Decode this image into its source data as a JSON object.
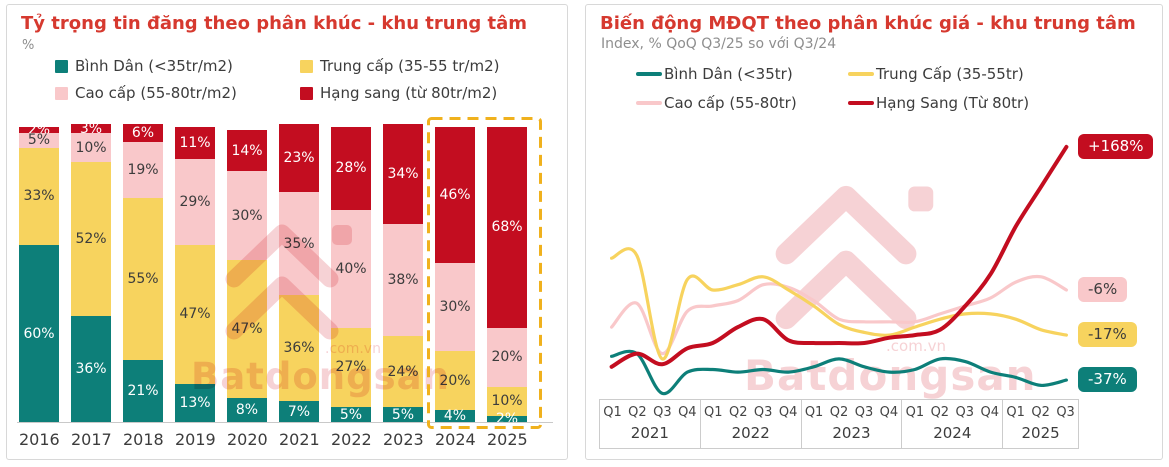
{
  "page": {
    "background": "#ffffff"
  },
  "colors": {
    "title_red": "#d6392f",
    "card_border": "#d8d8d8",
    "text_dark": "#3c3c3c",
    "text_muted": "#8e8e8e",
    "axis_gray": "#c9c9c9",
    "highlight_dash": "#f0b11d",
    "watermark_pink": "#f3bfc3",
    "teal": "#0d7f79",
    "yellow": "#f7d35e",
    "pink": "#f9c8ca",
    "red": "#c30d20"
  },
  "watermark": {
    "brand": "Batdongsan",
    "suffix": ".com.vn"
  },
  "chart_data": [
    {
      "type": "bar",
      "stacked": true,
      "title": "Tỷ trọng tin đăng theo phân khúc - khu trung tâm",
      "ylabel": "%",
      "xlabel": "",
      "ylim": [
        0,
        100
      ],
      "legend_position": "top",
      "value_suffix": "%",
      "categories": [
        "2016",
        "2017",
        "2018",
        "2019",
        "2020",
        "2021",
        "2022",
        "2023",
        "2024",
        "2025"
      ],
      "series": [
        {
          "name": "Bình Dân (<35tr/m2)",
          "color": "#0d7f79",
          "label_color": "#ffffff",
          "values": [
            60,
            36,
            21,
            13,
            8,
            7,
            5,
            5,
            4,
            2
          ]
        },
        {
          "name": "Trung cấp (35-55 tr/m2)",
          "color": "#f7d35e",
          "label_color": "#3c3c3c",
          "values": [
            33,
            52,
            55,
            47,
            47,
            36,
            27,
            24,
            20,
            10
          ]
        },
        {
          "name": "Cao cấp (55-80tr/m2)",
          "color": "#f9c8ca",
          "label_color": "#3c3c3c",
          "values": [
            5,
            10,
            19,
            29,
            30,
            35,
            40,
            38,
            30,
            20
          ]
        },
        {
          "name": "Hạng sang (từ 80tr/m2)",
          "color": "#c30d20",
          "label_color": "#ffffff",
          "values": [
            2,
            3,
            6,
            11,
            14,
            23,
            28,
            34,
            46,
            68
          ]
        }
      ],
      "highlight_box": {
        "categories": [
          "2024",
          "2025"
        ],
        "style": "dashed",
        "color": "#f0b11d"
      }
    },
    {
      "type": "line",
      "title": "Biến động MĐQT theo phân khúc giá - khu trung tâm",
      "subtitle": "Index, % QoQ Q3/25 so với Q3/24",
      "legend_position": "top",
      "grid": false,
      "y_axis_shown": false,
      "values_unit": "relative index, estimated (0-100 of plot height; no y-axis labels shown)",
      "x_groups": [
        {
          "year": "2021",
          "quarters": [
            "Q1",
            "Q2",
            "Q3",
            "Q4"
          ]
        },
        {
          "year": "2022",
          "quarters": [
            "Q1",
            "Q2",
            "Q3",
            "Q4"
          ]
        },
        {
          "year": "2023",
          "quarters": [
            "Q1",
            "Q2",
            "Q3",
            "Q4"
          ]
        },
        {
          "year": "2024",
          "quarters": [
            "Q1",
            "Q2",
            "Q3",
            "Q4"
          ]
        },
        {
          "year": "2025",
          "quarters": [
            "Q1",
            "Q2",
            "Q3"
          ]
        }
      ],
      "series": [
        {
          "name": "Bình Dân (<35tr)",
          "color": "#0d7f79",
          "line_width": 3.2,
          "end_label": "-37%",
          "end_label_text": "#ffffff",
          "values": [
            15,
            16,
            1,
            9,
            10,
            9,
            10,
            9,
            11,
            14,
            11,
            9,
            10,
            14,
            13,
            9,
            7,
            4,
            6
          ]
        },
        {
          "name": "Trung Cấp (35-55tr)",
          "color": "#f7d35e",
          "line_width": 3.2,
          "end_label": "-17%",
          "end_label_text": "#3c3c3c",
          "values": [
            52,
            53,
            14,
            44,
            40,
            42,
            45,
            40,
            34,
            27,
            24,
            23,
            26,
            29,
            31,
            31,
            29,
            25,
            23
          ]
        },
        {
          "name": "Cao cấp (55-80tr)",
          "color": "#f9c8ca",
          "line_width": 3.2,
          "end_label": "-6%",
          "end_label_text": "#3c3c3c",
          "values": [
            26,
            35,
            16,
            32,
            34,
            36,
            42,
            41,
            36,
            29,
            28,
            28,
            28,
            31,
            34,
            37,
            43,
            45,
            40
          ]
        },
        {
          "name": "Hạng Sang (Từ 80tr)",
          "color": "#c30d20",
          "line_width": 4,
          "end_label": "+168%",
          "end_label_text": "#ffffff",
          "values": [
            11,
            16,
            12,
            18,
            20,
            26,
            29,
            21,
            20,
            20,
            20,
            22,
            23,
            25,
            34,
            46,
            64,
            79,
            94
          ]
        }
      ]
    }
  ]
}
